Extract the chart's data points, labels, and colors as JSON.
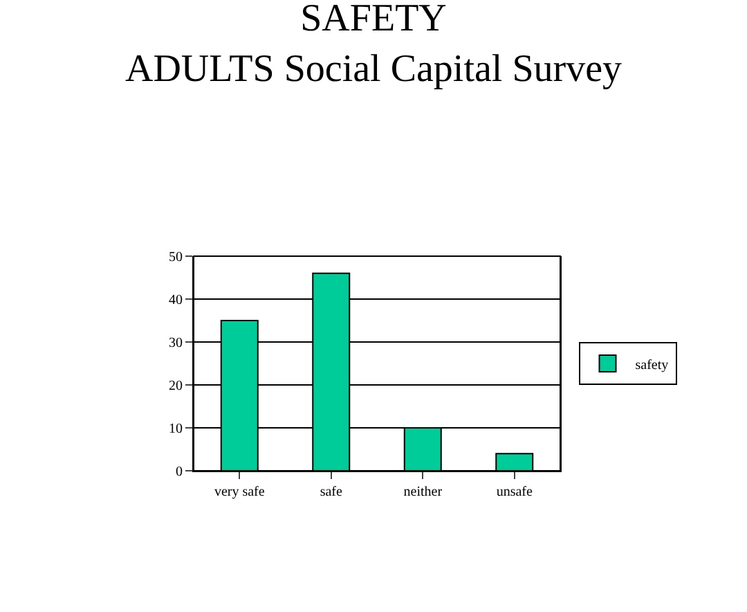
{
  "chart_data": {
    "type": "bar",
    "title": "SAFETY",
    "subtitle": "ADULTS Social Capital Survey",
    "categories": [
      "very safe",
      "safe",
      "neither",
      "unsafe"
    ],
    "series": [
      {
        "name": "safety",
        "color": "#00cc99",
        "values": [
          35,
          46,
          10,
          4
        ]
      }
    ],
    "ylim": [
      0,
      50
    ],
    "yticks": [
      0,
      10,
      20,
      30,
      40,
      50
    ],
    "grid": "y",
    "legend": "right"
  }
}
